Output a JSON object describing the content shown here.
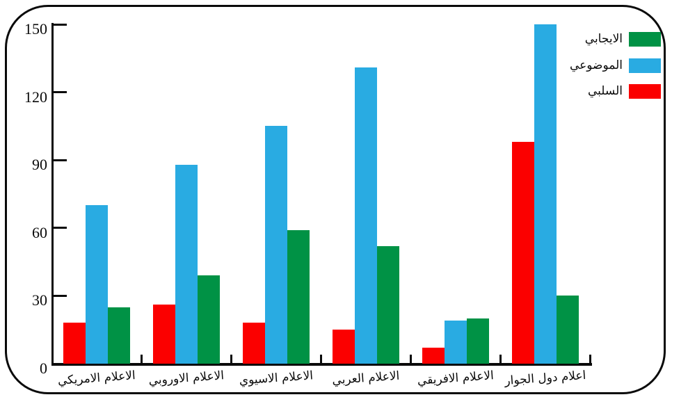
{
  "frame": {
    "border_color": "#0a0a0a",
    "background": "#ffffff"
  },
  "chart_data": {
    "type": "bar",
    "title": "",
    "xlabel": "",
    "ylabel": "",
    "categories": [
      "الاعلام الامريكي",
      "الاعلام الاوروبي",
      "الاعلام الاسيوي",
      "الاعلام العربي",
      "الاعلام الافريقي",
      "اعلام دول الجوار"
    ],
    "series": [
      {
        "name": "السلبي",
        "color": "#fb0000",
        "values": [
          18,
          26,
          18,
          15,
          7,
          98
        ]
      },
      {
        "name": "الموضوعي",
        "color": "#29abe2",
        "values": [
          70,
          88,
          105,
          131,
          19,
          150
        ]
      },
      {
        "name": "الايجابي",
        "color": "#009245",
        "values": [
          25,
          39,
          59,
          52,
          20,
          30
        ]
      }
    ],
    "ylim": [
      0,
      150
    ],
    "yticks": [
      "0",
      "30",
      "60",
      "90",
      "120",
      "150"
    ],
    "grid": "off",
    "legend": {
      "position": "top-right",
      "entries": [
        {
          "label": "الايجابي",
          "color": "#009245"
        },
        {
          "label": "الموضوعي",
          "color": "#29abe2"
        },
        {
          "label": "السلبي",
          "color": "#fb0000"
        }
      ]
    }
  }
}
